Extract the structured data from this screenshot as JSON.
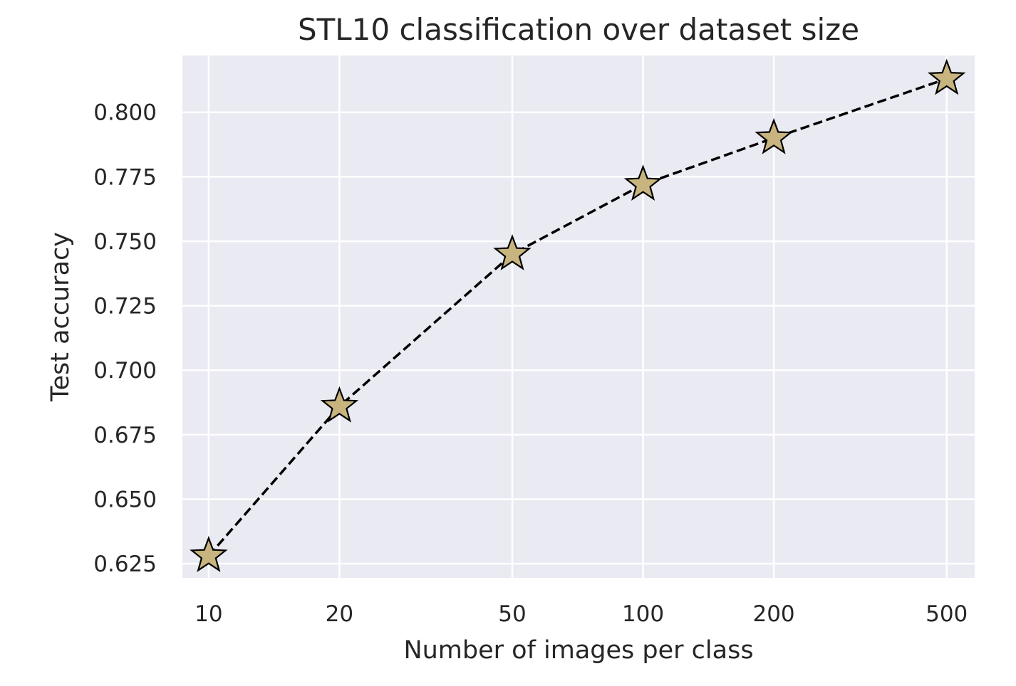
{
  "chart_data": {
    "type": "line",
    "title": "STL10 classification over dataset size",
    "xlabel": "Number of images per class",
    "ylabel": "Test accuracy",
    "xscale": "log",
    "grid": true,
    "xlim": [
      8.7,
      580
    ],
    "ylim": [
      0.6195,
      0.822
    ],
    "xticks": [
      {
        "value": 10,
        "label": "10"
      },
      {
        "value": 20,
        "label": "20"
      },
      {
        "value": 50,
        "label": "50"
      },
      {
        "value": 100,
        "label": "100"
      },
      {
        "value": 200,
        "label": "200"
      },
      {
        "value": 500,
        "label": "500"
      }
    ],
    "yticks": [
      {
        "value": 0.625,
        "label": "0.625"
      },
      {
        "value": 0.65,
        "label": "0.650"
      },
      {
        "value": 0.675,
        "label": "0.675"
      },
      {
        "value": 0.7,
        "label": "0.700"
      },
      {
        "value": 0.725,
        "label": "0.725"
      },
      {
        "value": 0.75,
        "label": "0.750"
      },
      {
        "value": 0.775,
        "label": "0.775"
      },
      {
        "value": 0.8,
        "label": "0.800"
      }
    ],
    "series": [
      {
        "name": "STL10",
        "x": [
          10,
          20,
          50,
          100,
          200,
          500
        ],
        "values": [
          0.628,
          0.686,
          0.745,
          0.772,
          0.79,
          0.813
        ],
        "line_style": "dashed",
        "line_color": "#000000",
        "marker": "star",
        "marker_color": "#c8b47e"
      }
    ],
    "colors": {
      "plot_background": "#eaeaf2",
      "grid": "#ffffff",
      "text": "#262626"
    }
  }
}
